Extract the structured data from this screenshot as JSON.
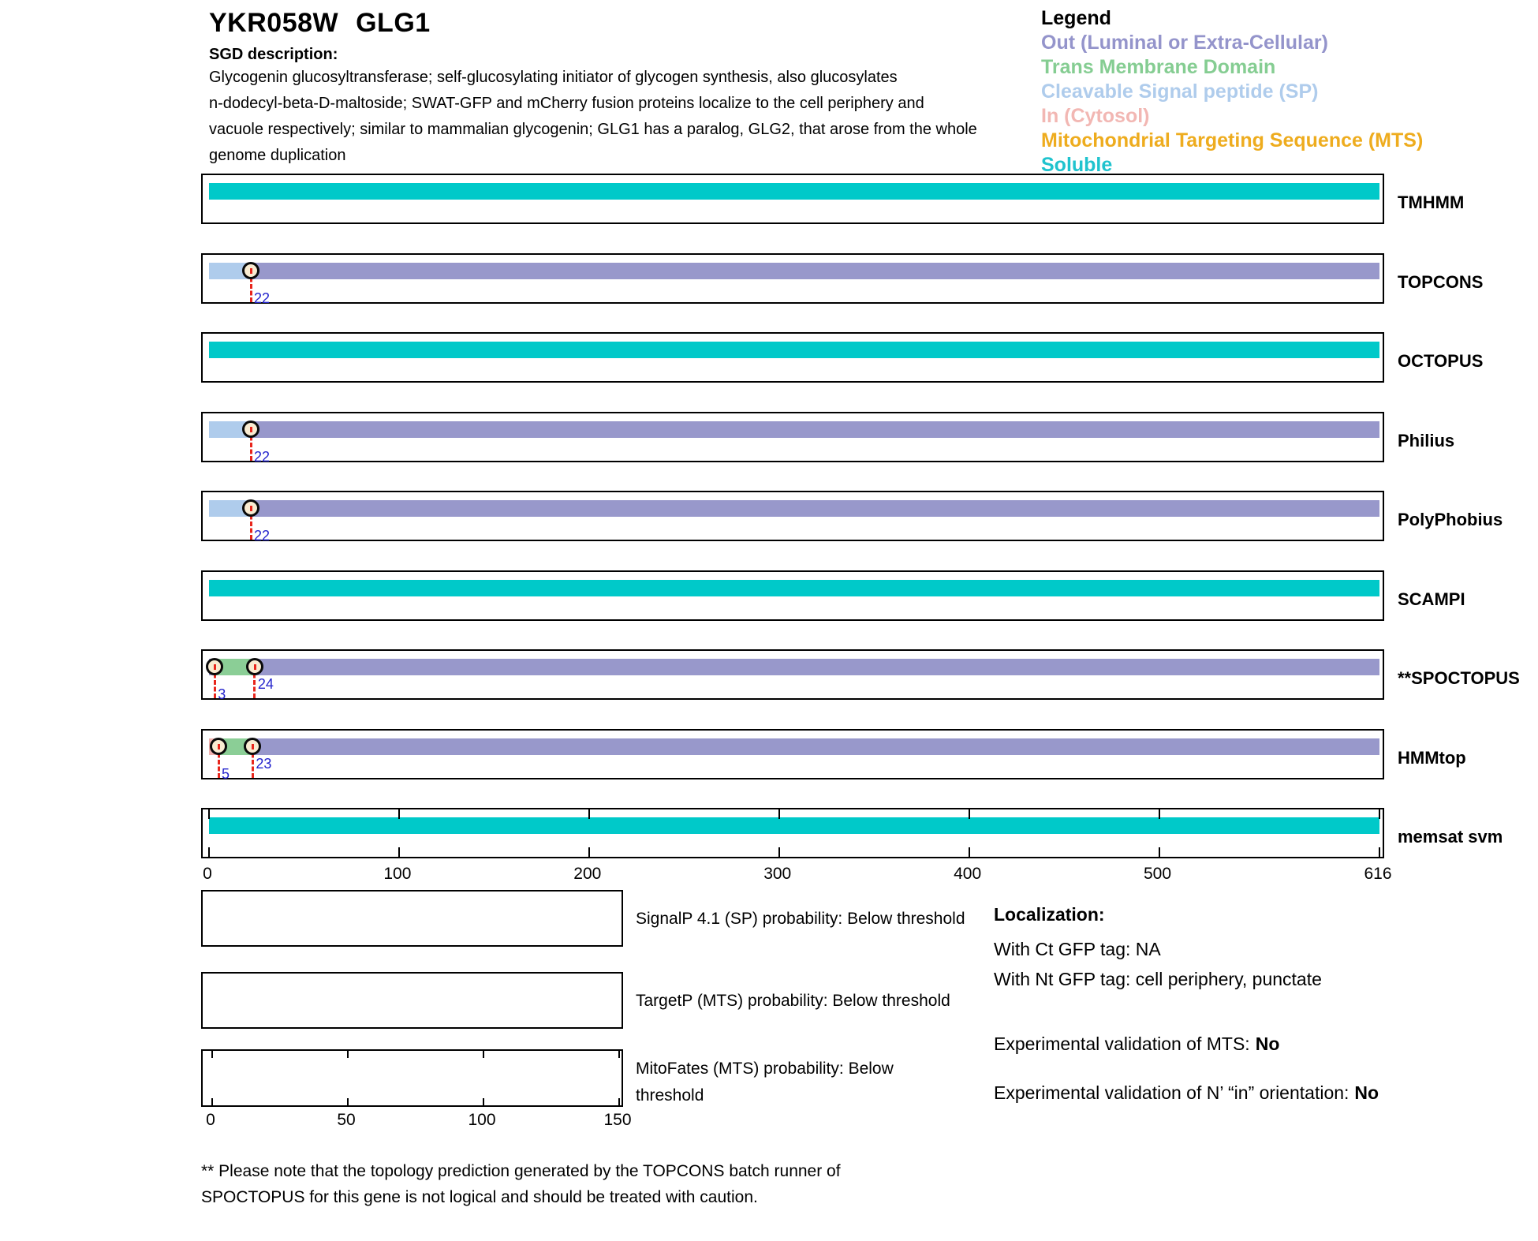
{
  "header": {
    "gene_id": "YKR058W",
    "gene_name": "GLG1",
    "sgd_label": "SGD description:",
    "description_lines": [
      "Glycogenin glucosyltransferase; self-glucosylating initiator of glycogen synthesis, also glucosylates",
      "n-dodecyl-beta-D-maltoside; SWAT-GFP and mCherry fusion proteins localize to the cell periphery and",
      "vacuole respectively; similar to mammalian glycogenin; GLG1 has a paralog, GLG2, that arose from the whole",
      "genome duplication"
    ]
  },
  "legend": {
    "title": "Legend",
    "items": [
      {
        "label": "Out (Luminal or Extra-Cellular)",
        "color": "#9494cb",
        "type": "out"
      },
      {
        "label": "Trans Membrane Domain",
        "color": "#85cd92",
        "type": "tm"
      },
      {
        "label": "Cleavable Signal peptide (SP)",
        "color": "#afccec",
        "type": "sp"
      },
      {
        "label": "In (Cytosol)",
        "color": "#f2b7b3",
        "type": "in"
      },
      {
        "label": "Mitochondrial Targeting Sequence (MTS)",
        "color": "#eeac1e",
        "type": "mts"
      },
      {
        "label": "Soluble",
        "color": "#1fc3ce",
        "type": "soluble"
      }
    ]
  },
  "colors": {
    "out": "#9898cb",
    "tm": "#8bce96",
    "sp": "#afccec",
    "in": "#f0b3b0",
    "mts": "#eeac1e",
    "soluble": "#00c9c9",
    "marker_line": "#e8261c",
    "marker_label": "#2323cc",
    "marker_circle_fill": "#f9ecd2"
  },
  "chart_data": {
    "type": "bar",
    "title": "Membrane topology predictions per residue (1-616)",
    "sequence_length": 616,
    "axis": {
      "ticks": [
        0,
        100,
        200,
        300,
        400,
        500,
        616
      ],
      "max": 616
    },
    "tracks": [
      {
        "label": "TMHMM",
        "segments": [
          {
            "type": "soluble",
            "from": 0,
            "to": 616
          }
        ],
        "markers": [],
        "axis_ticks": false
      },
      {
        "label": "TOPCONS",
        "segments": [
          {
            "type": "sp",
            "from": 0,
            "to": 22
          },
          {
            "type": "out",
            "from": 22,
            "to": 616
          }
        ],
        "markers": [
          {
            "pos": 22,
            "label": "22",
            "tier": "low"
          }
        ],
        "axis_ticks": false
      },
      {
        "label": "OCTOPUS",
        "segments": [
          {
            "type": "soluble",
            "from": 0,
            "to": 616
          }
        ],
        "markers": [],
        "axis_ticks": false
      },
      {
        "label": "Philius",
        "segments": [
          {
            "type": "sp",
            "from": 0,
            "to": 22
          },
          {
            "type": "out",
            "from": 22,
            "to": 616
          }
        ],
        "markers": [
          {
            "pos": 22,
            "label": "22",
            "tier": "low"
          }
        ],
        "axis_ticks": false
      },
      {
        "label": "PolyPhobius",
        "segments": [
          {
            "type": "sp",
            "from": 0,
            "to": 22
          },
          {
            "type": "out",
            "from": 22,
            "to": 616
          }
        ],
        "markers": [
          {
            "pos": 22,
            "label": "22",
            "tier": "low"
          }
        ],
        "axis_ticks": false
      },
      {
        "label": "SCAMPI",
        "segments": [
          {
            "type": "soluble",
            "from": 0,
            "to": 616
          }
        ],
        "markers": [],
        "axis_ticks": false
      },
      {
        "label": "**SPOCTOPUS",
        "segments": [
          {
            "type": "out",
            "from": 0,
            "to": 3
          },
          {
            "type": "tm",
            "from": 3,
            "to": 24
          },
          {
            "type": "out",
            "from": 24,
            "to": 616
          }
        ],
        "markers": [
          {
            "pos": 3,
            "label": "3",
            "tier": "low"
          },
          {
            "pos": 24,
            "label": "24",
            "tier": "mid"
          }
        ],
        "axis_ticks": false
      },
      {
        "label": "HMMtop",
        "segments": [
          {
            "type": "in",
            "from": 0,
            "to": 5
          },
          {
            "type": "tm",
            "from": 5,
            "to": 23
          },
          {
            "type": "out",
            "from": 23,
            "to": 616
          }
        ],
        "markers": [
          {
            "pos": 5,
            "label": "5",
            "tier": "low"
          },
          {
            "pos": 23,
            "label": "23",
            "tier": "mid"
          }
        ],
        "axis_ticks": false
      },
      {
        "label": "memsat svm",
        "segments": [
          {
            "type": "soluble",
            "from": 0,
            "to": 616
          }
        ],
        "markers": [],
        "axis_ticks": true
      }
    ],
    "probability_plots": [
      {
        "label_lines": [
          "SignalP 4.1 (SP) probability: Below threshold"
        ],
        "data": "below threshold (empty plot)",
        "axis_ticks": null
      },
      {
        "label_lines": [
          "TargetP (MTS) probability: Below threshold"
        ],
        "data": "below threshold (empty plot)",
        "axis_ticks": null
      },
      {
        "label_lines": [
          "MitoFates (MTS) probability: Below",
          "threshold"
        ],
        "data": "below threshold (empty plot)",
        "axis_ticks": [
          0,
          50,
          100,
          150
        ],
        "axis_max": 150
      }
    ]
  },
  "localization": {
    "title": "Localization:",
    "ct_gfp": "With Ct GFP tag: NA",
    "nt_gfp": "With Nt GFP tag: cell periphery, punctate",
    "mts_validation": {
      "text": "Experimental validation of MTS:",
      "value": "No"
    },
    "orientation_validation": {
      "text": "Experimental validation of N’ “in” orientation:",
      "value": "No"
    }
  },
  "footnote_lines": [
    "** Please note that the topology prediction generated by the TOPCONS batch runner of",
    "SPOCTOPUS for this gene is not logical and should be treated with caution."
  ]
}
